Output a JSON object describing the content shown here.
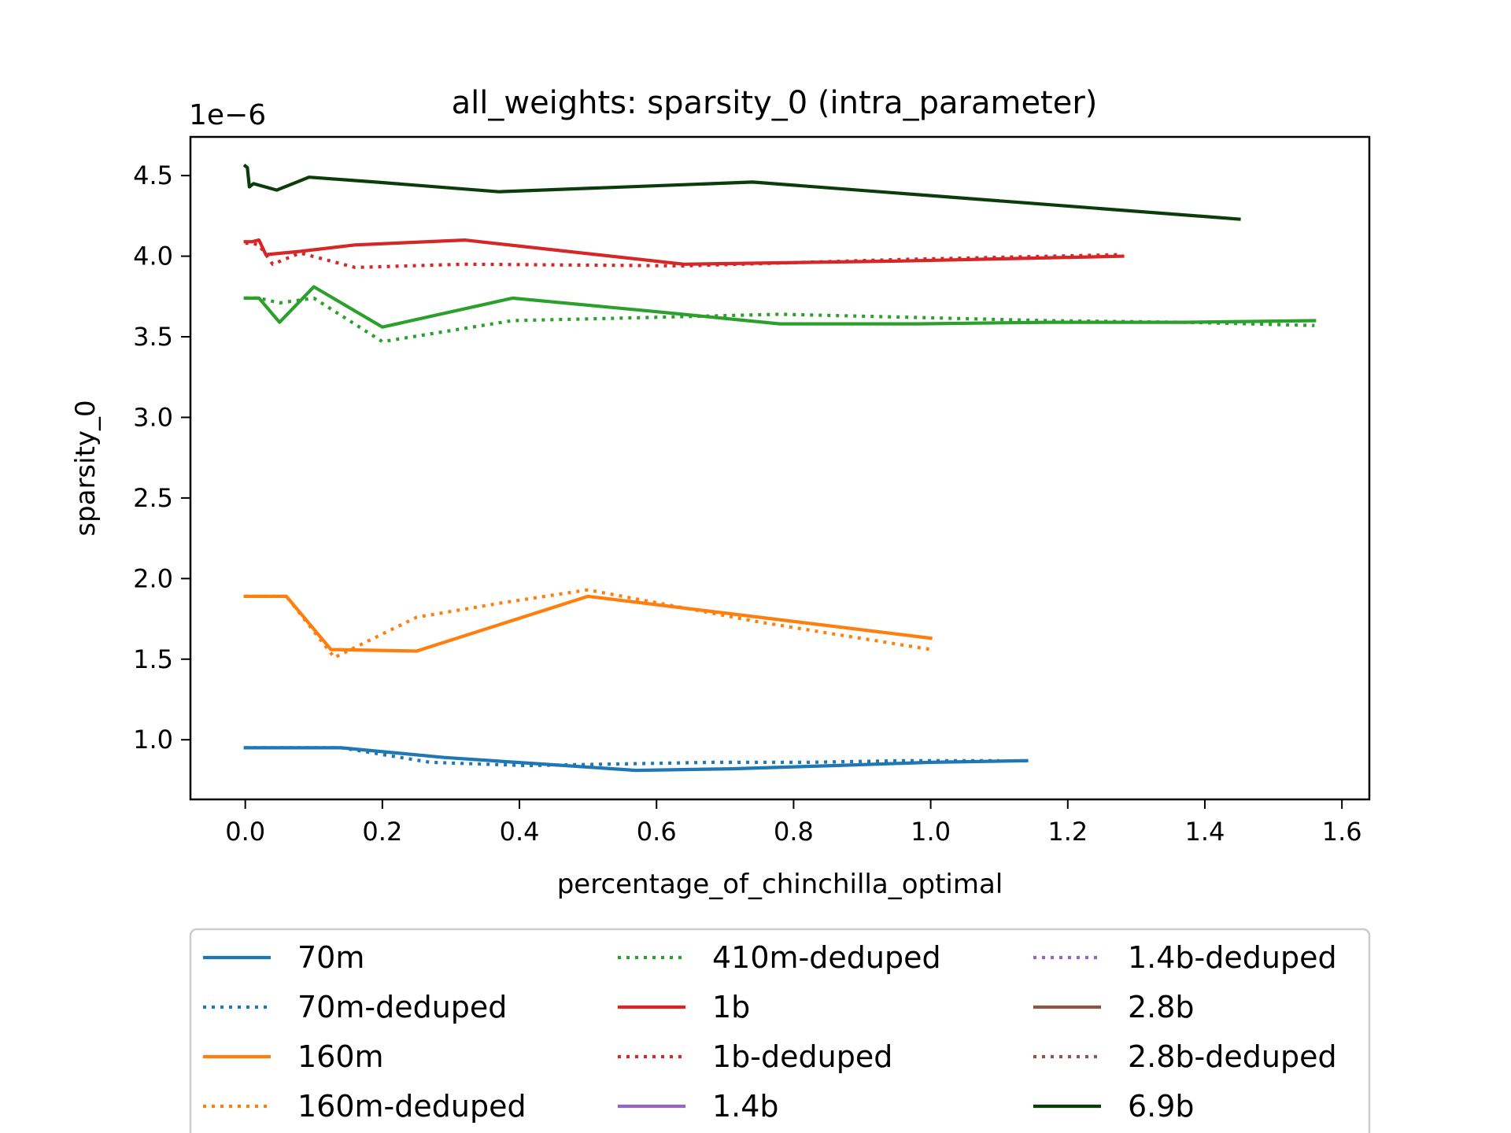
{
  "chart_data": {
    "type": "line",
    "title": "all_weights: sparsity_0 (intra_parameter)",
    "xlabel": "percentage_of_chinchilla_optimal",
    "ylabel": "sparsity_0",
    "y_offset_label": "1e−6",
    "xlim": [
      -0.08,
      1.64
    ],
    "ylim": [
      0.63,
      4.74
    ],
    "xticks": [
      0.0,
      0.2,
      0.4,
      0.6,
      0.8,
      1.0,
      1.2,
      1.4,
      1.6
    ],
    "xtick_labels": [
      "0.0",
      "0.2",
      "0.4",
      "0.6",
      "0.8",
      "1.0",
      "1.2",
      "1.4",
      "1.6"
    ],
    "yticks": [
      1.0,
      1.5,
      2.0,
      2.5,
      3.0,
      3.5,
      4.0,
      4.5
    ],
    "ytick_labels": [
      "1.0",
      "1.5",
      "2.0",
      "2.5",
      "3.0",
      "3.5",
      "4.0",
      "4.5"
    ],
    "grid": false,
    "legend_position": "below the plot, 3 columns",
    "series": [
      {
        "name": "70m",
        "color": "#1f77b4",
        "style": "solid",
        "x": [
          0.0,
          0.01,
          0.02,
          0.04,
          0.07,
          0.14,
          0.29,
          0.43,
          0.57,
          0.71,
          0.86,
          1.0,
          1.14
        ],
        "y": [
          0.95,
          0.95,
          0.95,
          0.95,
          0.95,
          0.95,
          0.89,
          0.85,
          0.81,
          0.82,
          0.84,
          0.86,
          0.87
        ]
      },
      {
        "name": "70m-deduped",
        "color": "#1f77b4",
        "style": "dotted",
        "x": [
          0.0,
          0.01,
          0.02,
          0.04,
          0.07,
          0.14,
          0.27,
          0.41,
          0.55,
          0.68,
          0.82,
          0.96,
          1.1
        ],
        "y": [
          0.95,
          0.95,
          0.95,
          0.95,
          0.95,
          0.95,
          0.86,
          0.84,
          0.85,
          0.86,
          0.86,
          0.87,
          0.87
        ]
      },
      {
        "name": "160m",
        "color": "#ff7f0e",
        "style": "solid",
        "x": [
          0.0,
          0.01,
          0.02,
          0.03,
          0.06,
          0.125,
          0.25,
          0.5,
          0.75,
          1.0
        ],
        "y": [
          1.89,
          1.89,
          1.89,
          1.89,
          1.89,
          1.56,
          1.55,
          1.89,
          1.76,
          1.63
        ]
      },
      {
        "name": "160m-deduped",
        "color": "#ff7f0e",
        "style": "dotted",
        "x": [
          0.0,
          0.01,
          0.02,
          0.03,
          0.06,
          0.13,
          0.25,
          0.375,
          0.5,
          0.75,
          1.0
        ],
        "y": [
          1.89,
          1.89,
          1.89,
          1.89,
          1.89,
          1.51,
          1.76,
          1.85,
          1.93,
          1.73,
          1.56
        ]
      },
      {
        "name": "410m-deduped",
        "color": "#2ca02c",
        "style": "dotted",
        "x": [
          0.0,
          0.01,
          0.02,
          0.05,
          0.1,
          0.2,
          0.39,
          0.59,
          0.78,
          0.98,
          1.17,
          1.37,
          1.56
        ],
        "y": [
          3.74,
          3.74,
          3.74,
          3.71,
          3.74,
          3.47,
          3.6,
          3.62,
          3.64,
          3.62,
          3.6,
          3.59,
          3.57
        ]
      },
      {
        "name": "1b",
        "color": "#d62728",
        "style": "solid",
        "x": [
          0.0,
          0.01,
          0.02,
          0.03,
          0.08,
          0.16,
          0.32,
          0.64,
          0.96,
          1.28
        ],
        "y": [
          4.09,
          4.09,
          4.1,
          4.01,
          4.03,
          4.07,
          4.1,
          3.95,
          3.97,
          4.0
        ]
      },
      {
        "name": "1b-deduped",
        "color": "#d62728",
        "style": "dotted",
        "x": [
          0.0,
          0.01,
          0.02,
          0.04,
          0.08,
          0.16,
          0.32,
          0.64,
          0.96,
          1.28
        ],
        "y": [
          4.08,
          4.08,
          4.07,
          3.95,
          4.02,
          3.93,
          3.95,
          3.94,
          3.98,
          4.01
        ]
      },
      {
        "name": "1.4b",
        "color": "#9467bd",
        "style": "solid",
        "x": [],
        "y": []
      },
      {
        "name": "1.4b-deduped",
        "color": "#9467bd",
        "style": "dotted",
        "x": [],
        "y": []
      },
      {
        "name": "2.8b",
        "color": "#8c564b",
        "style": "solid",
        "x": [],
        "y": []
      },
      {
        "name": "2.8b-deduped",
        "color": "#8c564b",
        "style": "dotted",
        "x": [],
        "y": []
      },
      {
        "name": "410m",
        "color": "#2ca02c",
        "style": "solid",
        "in_legend": false,
        "x": [
          0.0,
          0.01,
          0.02,
          0.05,
          0.1,
          0.2,
          0.39,
          0.59,
          0.78,
          0.98,
          1.17,
          1.37,
          1.56
        ],
        "y": [
          3.74,
          3.74,
          3.74,
          3.59,
          3.81,
          3.56,
          3.74,
          3.66,
          3.58,
          3.58,
          3.59,
          3.59,
          3.6
        ]
      },
      {
        "name": "6.9b",
        "color": "#0b3d0b",
        "style": "solid",
        "x": [
          0.0,
          0.003,
          0.006,
          0.012,
          0.046,
          0.093,
          0.19,
          0.37,
          0.74,
          1.45
        ],
        "y": [
          4.56,
          4.55,
          4.43,
          4.45,
          4.41,
          4.49,
          4.46,
          4.4,
          4.46,
          4.23
        ]
      }
    ]
  }
}
